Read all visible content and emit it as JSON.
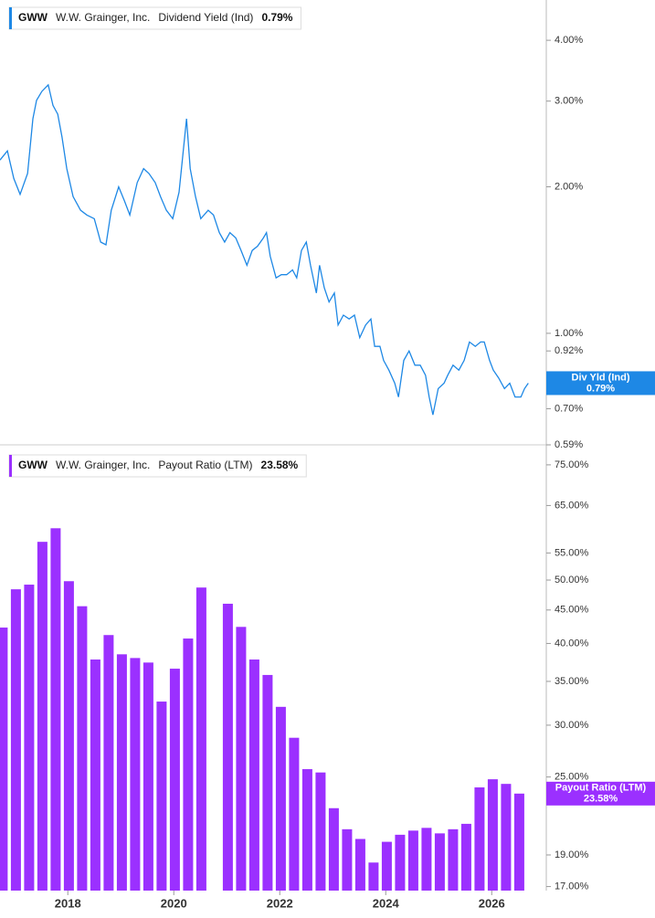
{
  "chart_data": [
    {
      "type": "line",
      "ticker": "GWW",
      "company": "W.W. Grainger, Inc.",
      "value_label": "0.79%",
      "tag_label": "Div Yld (Ind)",
      "log_y": true,
      "xlim": [
        2016.72,
        2027.03
      ],
      "ylim": [
        0.59,
        4.84
      ],
      "yticks": [
        {
          "value": 4,
          "label": "4.00%"
        },
        {
          "value": 3,
          "label": "3.00%"
        },
        {
          "value": 2,
          "label": "2.00%"
        },
        {
          "value": 1,
          "label": "1.00%"
        },
        {
          "value": 0.92,
          "label": "0.92%"
        },
        {
          "value": 0.7,
          "label": "0.70%"
        },
        {
          "value": 0.59,
          "label": "0.59%"
        }
      ],
      "series": [
        {
          "name": "Dividend Yield (Ind)",
          "color": "#1e88e5",
          "x": [
            2016.72,
            2016.86,
            2016.98,
            2017.1,
            2017.24,
            2017.34,
            2017.41,
            2017.51,
            2017.63,
            2017.72,
            2017.81,
            2017.89,
            2017.98,
            2018.1,
            2018.24,
            2018.36,
            2018.5,
            2018.62,
            2018.72,
            2018.82,
            2018.96,
            2019.07,
            2019.17,
            2019.31,
            2019.43,
            2019.53,
            2019.65,
            2019.75,
            2019.86,
            2019.98,
            2020.1,
            2020.17,
            2020.24,
            2020.31,
            2020.41,
            2020.51,
            2020.65,
            2020.75,
            2020.86,
            2020.96,
            2021.06,
            2021.17,
            2021.27,
            2021.38,
            2021.48,
            2021.58,
            2021.69,
            2021.75,
            2021.82,
            2021.93,
            2022.03,
            2022.13,
            2022.24,
            2022.32,
            2022.41,
            2022.5,
            2022.58,
            2022.69,
            2022.75,
            2022.84,
            2022.93,
            2023.03,
            2023.1,
            2023.2,
            2023.31,
            2023.41,
            2023.51,
            2023.62,
            2023.72,
            2023.79,
            2023.89,
            2023.96,
            2024.06,
            2024.17,
            2024.24,
            2024.34,
            2024.44,
            2024.55,
            2024.65,
            2024.75,
            2024.82,
            2024.89,
            2024.99,
            2025.1,
            2025.17,
            2025.27,
            2025.38,
            2025.48,
            2025.58,
            2025.69,
            2025.79,
            2025.86,
            2025.96,
            2026.03,
            2026.13,
            2026.24,
            2026.34,
            2026.44,
            2026.55,
            2026.62,
            2026.69
          ],
          "values": [
            2.27,
            2.37,
            2.08,
            1.93,
            2.13,
            2.76,
            3.01,
            3.14,
            3.24,
            2.94,
            2.82,
            2.53,
            2.18,
            1.91,
            1.79,
            1.75,
            1.72,
            1.54,
            1.52,
            1.79,
            2.0,
            1.87,
            1.75,
            2.04,
            2.18,
            2.13,
            2.04,
            1.91,
            1.79,
            1.72,
            1.95,
            2.32,
            2.76,
            2.18,
            1.91,
            1.72,
            1.79,
            1.75,
            1.61,
            1.54,
            1.61,
            1.57,
            1.48,
            1.38,
            1.48,
            1.51,
            1.57,
            1.61,
            1.44,
            1.3,
            1.32,
            1.32,
            1.35,
            1.3,
            1.48,
            1.54,
            1.38,
            1.21,
            1.38,
            1.24,
            1.16,
            1.21,
            1.04,
            1.09,
            1.07,
            1.09,
            0.98,
            1.04,
            1.07,
            0.94,
            0.94,
            0.88,
            0.84,
            0.79,
            0.74,
            0.88,
            0.92,
            0.86,
            0.86,
            0.82,
            0.74,
            0.68,
            0.77,
            0.79,
            0.82,
            0.86,
            0.84,
            0.88,
            0.96,
            0.94,
            0.96,
            0.96,
            0.88,
            0.84,
            0.81,
            0.77,
            0.79,
            0.74,
            0.74,
            0.77,
            0.79
          ]
        }
      ]
    },
    {
      "type": "bar",
      "ticker": "GWW",
      "company": "W.W. Grainger, Inc.",
      "value_label": "23.58%",
      "log_y": true,
      "xlim": [
        2016.72,
        2027.03
      ],
      "xticks": [
        2018,
        2020,
        2022,
        2024,
        2026
      ],
      "ylim": [
        16.76,
        79.7
      ],
      "yticks": [
        {
          "value": 75,
          "label": "75.00%"
        },
        {
          "value": 65,
          "label": "65.00%"
        },
        {
          "value": 55,
          "label": "55.00%"
        },
        {
          "value": 50,
          "label": "50.00%"
        },
        {
          "value": 45,
          "label": "45.00%"
        },
        {
          "value": 40,
          "label": "40.00%"
        },
        {
          "value": 35,
          "label": "35.00%"
        },
        {
          "value": 30,
          "label": "30.00%"
        },
        {
          "value": 25,
          "label": "25.00%"
        },
        {
          "value": 19,
          "label": "19.00%"
        },
        {
          "value": 17,
          "label": "17.00%"
        }
      ],
      "series": [
        {
          "name": "Payout Ratio (LTM)",
          "color": "#9b30ff",
          "x": [
            2016.77,
            2017.02,
            2017.27,
            2017.52,
            2017.77,
            2018.02,
            2018.27,
            2018.52,
            2018.77,
            2019.02,
            2019.27,
            2019.52,
            2019.77,
            2020.02,
            2020.27,
            2020.52,
            2020.77,
            2021.02,
            2021.27,
            2021.52,
            2021.77,
            2022.02,
            2022.27,
            2022.52,
            2022.77,
            2023.02,
            2023.27,
            2023.52,
            2023.77,
            2024.02,
            2024.27,
            2024.52,
            2024.77,
            2025.02,
            2025.27,
            2025.52,
            2025.77,
            2026.02,
            2026.27,
            2026.52
          ],
          "values": [
            42.3,
            48.4,
            49.2,
            57.2,
            60.0,
            49.8,
            45.6,
            37.8,
            41.2,
            38.5,
            38.0,
            37.4,
            32.6,
            36.6,
            40.7,
            48.7,
            null,
            46.0,
            42.4,
            37.8,
            35.8,
            32.0,
            28.7,
            25.7,
            25.4,
            22.4,
            20.8,
            20.1,
            18.5,
            19.9,
            20.4,
            20.7,
            20.9,
            20.5,
            20.8,
            21.2,
            24.1,
            24.8,
            24.4,
            23.58
          ]
        }
      ]
    }
  ]
}
